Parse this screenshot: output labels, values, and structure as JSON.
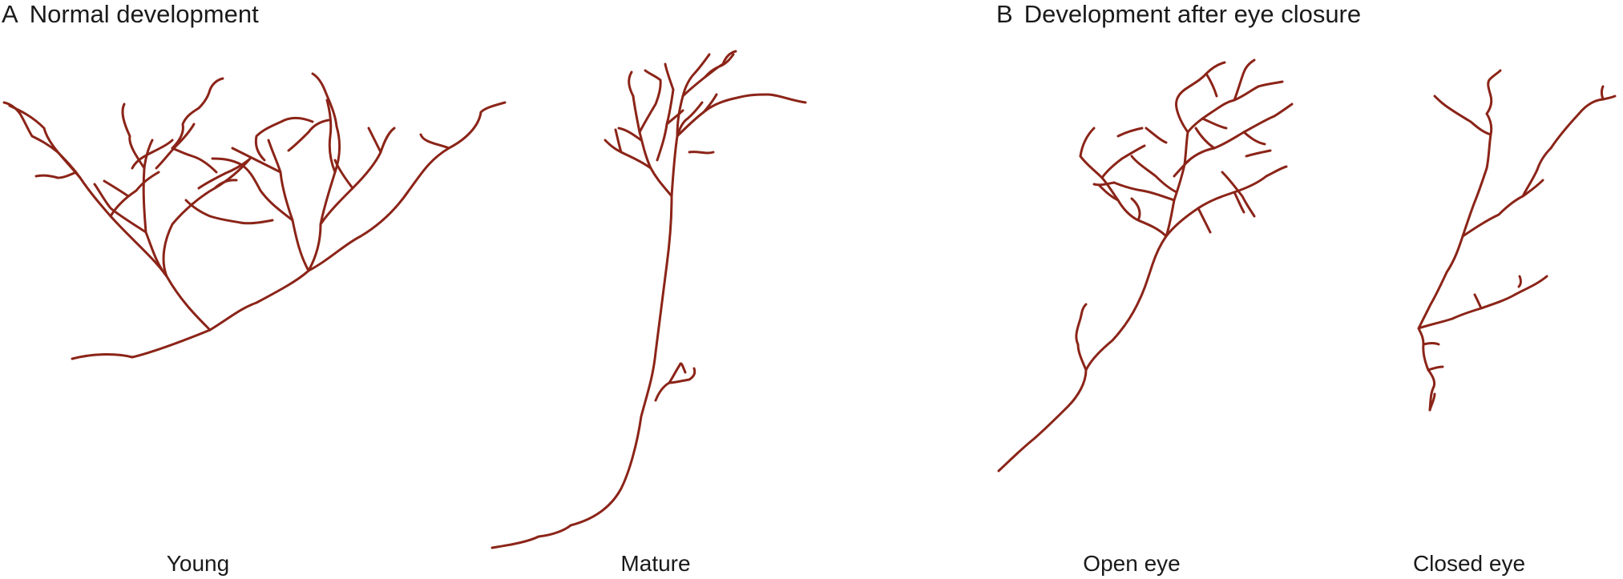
{
  "figure": {
    "panel_a": {
      "letter": "A",
      "title": "Normal development"
    },
    "panel_b": {
      "letter": "B",
      "title": "Development after eye closure"
    },
    "captions": {
      "young": "Young",
      "mature": "Mature",
      "open_eye": "Open eye",
      "closed_eye": "Closed eye"
    },
    "neuron_color": "#8b2418"
  }
}
